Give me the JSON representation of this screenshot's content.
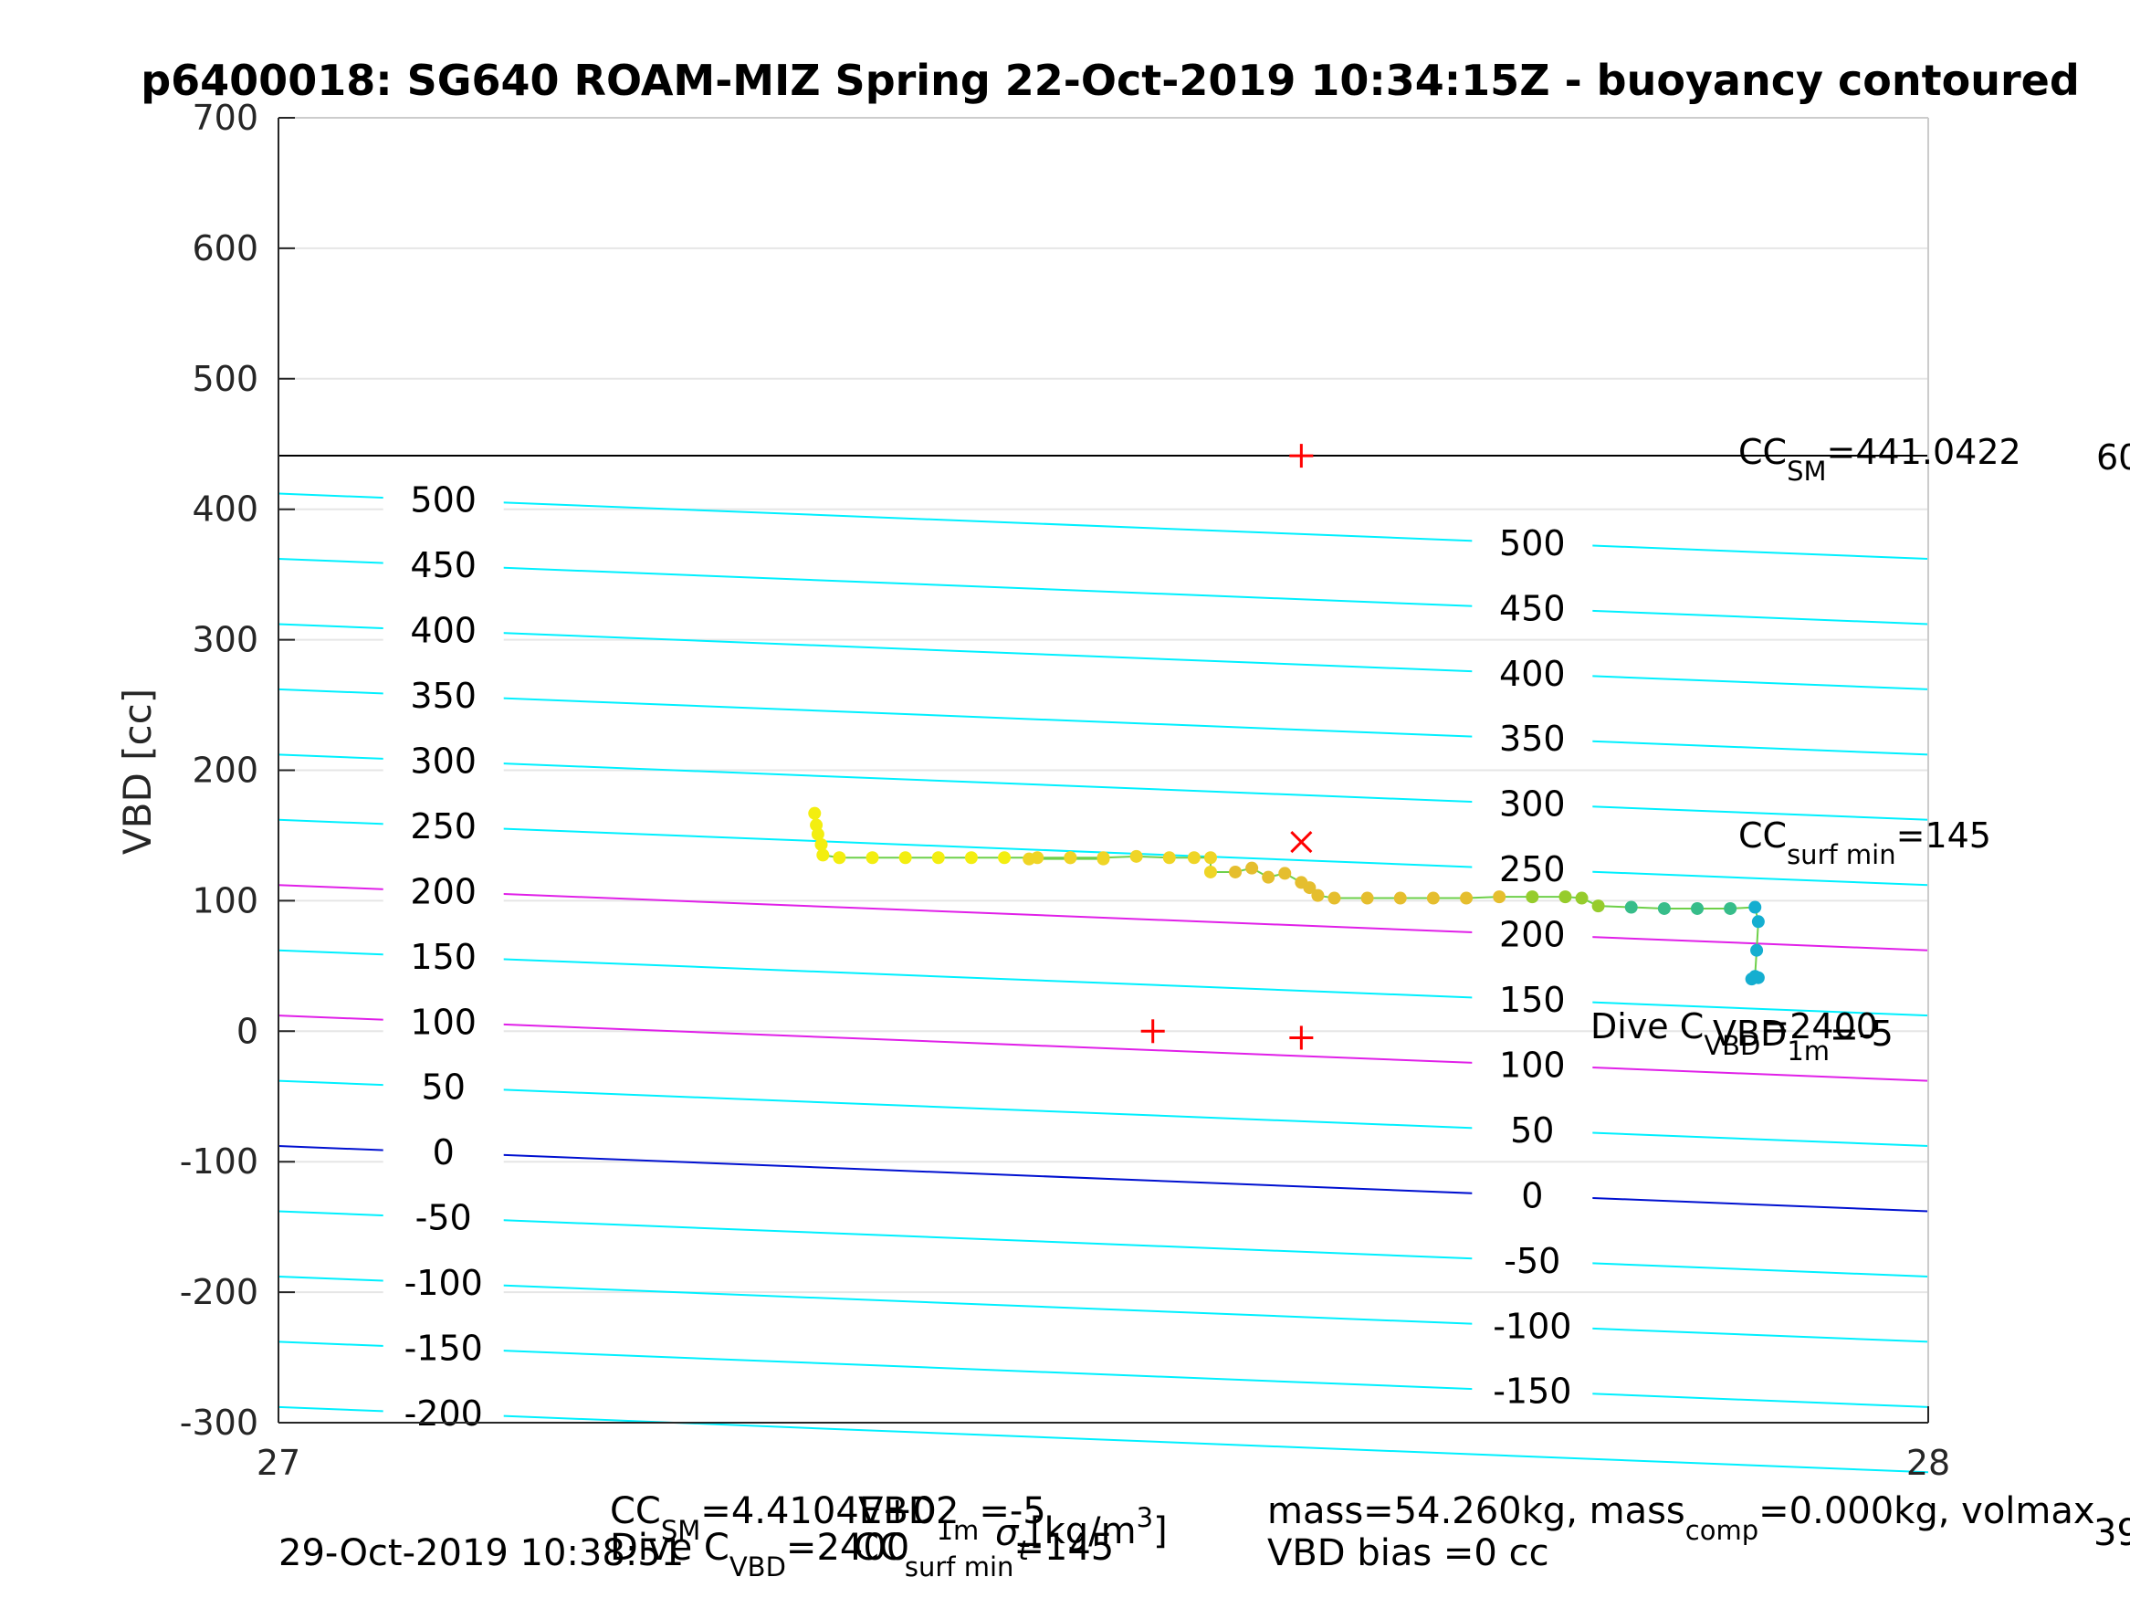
{
  "chart_data": {
    "type": "scatter",
    "title": "p6400018: SG640 ROAM-MIZ Spring 22-Oct-2019 10:34:15Z - buoyancy contoured",
    "xlabel": "",
    "ylabel": "VBD [cc]",
    "xlim": [
      27,
      28
    ],
    "ylim": [
      -300,
      700
    ],
    "x_ticks": [
      "27",
      "28"
    ],
    "y_ticks": [
      "700",
      "600",
      "500",
      "400",
      "300",
      "200",
      "100",
      "0",
      "-100",
      "-200",
      "-300"
    ],
    "grid": true,
    "reference_line": {
      "y": 441.0422,
      "label_main": "CC",
      "label_sub": "SM",
      "label_value": "=441.0422",
      "label_clipped": "60"
    },
    "contours": [
      {
        "value": 500,
        "y_left": 412,
        "y_right": 362,
        "color": "#00f0ff"
      },
      {
        "value": 450,
        "y_left": 362,
        "y_right": 312,
        "color": "#00f0ff"
      },
      {
        "value": 400,
        "y_left": 312,
        "y_right": 262,
        "color": "#00f0ff"
      },
      {
        "value": 350,
        "y_left": 262,
        "y_right": 212,
        "color": "#00f0ff"
      },
      {
        "value": 300,
        "y_left": 212,
        "y_right": 162,
        "color": "#00f0ff"
      },
      {
        "value": 250,
        "y_left": 162,
        "y_right": 112,
        "color": "#00f0ff"
      },
      {
        "value": 200,
        "y_left": 112,
        "y_right": 62,
        "color": "#e020e8"
      },
      {
        "value": 150,
        "y_left": 62,
        "y_right": 12,
        "color": "#00f0ff"
      },
      {
        "value": 100,
        "y_left": 12,
        "y_right": -38,
        "color": "#e020e8"
      },
      {
        "value": 50,
        "y_left": -38,
        "y_right": -88,
        "color": "#00f0ff"
      },
      {
        "value": 0,
        "y_left": -88,
        "y_right": -138,
        "color": "#0010d0"
      },
      {
        "value": -50,
        "y_left": -138,
        "y_right": -188,
        "color": "#00f0ff"
      },
      {
        "value": -100,
        "y_left": -188,
        "y_right": -238,
        "color": "#00f0ff"
      },
      {
        "value": -150,
        "y_left": -238,
        "y_right": -288,
        "color": "#00f0ff"
      },
      {
        "value": -200,
        "y_left": -288,
        "y_right": -338,
        "color": "#00f0ff"
      }
    ],
    "contour_labels_left": [
      "500",
      "450",
      "400",
      "350",
      "300",
      "250",
      "200",
      "150",
      "100",
      "50",
      "0",
      "-50",
      "-100",
      "-150",
      "-200"
    ],
    "contour_labels_right": [
      "500",
      "450",
      "400",
      "350",
      "300",
      "250",
      "200",
      "150",
      "100",
      "50",
      "0",
      "-50",
      "-100",
      "-150"
    ],
    "markers": [
      {
        "x": 27.62,
        "y": 441,
        "symbol": "+"
      },
      {
        "x": 27.62,
        "y": 145,
        "symbol": "x"
      },
      {
        "x": 27.53,
        "y": 0,
        "symbol": "+"
      },
      {
        "x": 27.62,
        "y": -5,
        "symbol": "+"
      }
    ],
    "annotations": {
      "cc_surf_main": "CC",
      "cc_surf_sub": "surf min",
      "cc_surf_value": "=145",
      "dive_main": "Dive C",
      "dive_sub": "VBD",
      "dive_value": "=2400",
      "vbd1m_main": "VBD",
      "vbd1m_sub": "1m",
      "vbd1m_value": "=-5"
    },
    "series": [
      {
        "colors": [
          "#f3ee10",
          "#efd526",
          "#e5be2e",
          "#96cc2c",
          "#37bd8a",
          "#14aed0"
        ],
        "points": [
          [
            27.325,
            167
          ],
          [
            27.326,
            158
          ],
          [
            27.327,
            151
          ],
          [
            27.329,
            143
          ],
          [
            27.33,
            135
          ],
          [
            27.34,
            133
          ],
          [
            27.36,
            133
          ],
          [
            27.38,
            133
          ],
          [
            27.4,
            133
          ],
          [
            27.42,
            133
          ],
          [
            27.44,
            133
          ],
          [
            27.46,
            133
          ],
          [
            27.48,
            133
          ],
          [
            27.5,
            132
          ],
          [
            27.455,
            132
          ],
          [
            27.48,
            133
          ],
          [
            27.5,
            133
          ],
          [
            27.52,
            134
          ],
          [
            27.54,
            133
          ],
          [
            27.555,
            133
          ],
          [
            27.565,
            133
          ],
          [
            27.565,
            122
          ],
          [
            27.58,
            122
          ],
          [
            27.59,
            125
          ],
          [
            27.6,
            118
          ],
          [
            27.61,
            121
          ],
          [
            27.62,
            114
          ],
          [
            27.625,
            110
          ],
          [
            27.63,
            104
          ],
          [
            27.64,
            102
          ],
          [
            27.66,
            102
          ],
          [
            27.68,
            102
          ],
          [
            27.7,
            102
          ],
          [
            27.72,
            102
          ],
          [
            27.74,
            103
          ],
          [
            27.76,
            103
          ],
          [
            27.78,
            103
          ],
          [
            27.79,
            102
          ],
          [
            27.8,
            96
          ],
          [
            27.82,
            95
          ],
          [
            27.84,
            94
          ],
          [
            27.86,
            94
          ],
          [
            27.88,
            94
          ],
          [
            27.895,
            95
          ],
          [
            27.897,
            84
          ],
          [
            27.896,
            62
          ],
          [
            27.895,
            42
          ],
          [
            27.893,
            40
          ],
          [
            27.897,
            41
          ]
        ],
        "color_index": [
          0,
          0,
          0,
          0,
          0,
          0,
          0,
          0,
          0,
          0,
          0,
          1,
          1,
          1,
          1,
          1,
          1,
          1,
          1,
          1,
          1,
          1,
          2,
          2,
          2,
          2,
          2,
          2,
          2,
          2,
          2,
          2,
          2,
          2,
          2,
          3,
          3,
          3,
          3,
          4,
          4,
          4,
          4,
          5,
          5,
          5,
          5,
          5,
          5
        ]
      }
    ]
  },
  "footer": {
    "timestamp": "29-Oct-2019 10:38:51",
    "overlap_line1_a": "CC",
    "overlap_line1_sm": "SM",
    "overlap_line1_b": "=4.4104E+02",
    "overlap_vbd": "VBD",
    "overlap_1m": "1m",
    "overlap_line1_c": "=-5",
    "overlap_density": "[kg/m",
    "overlap_density_sup": "3",
    "overlap_density_end": "]",
    "overlap_line2_a": "Dive C",
    "overlap_line2_vbd": "VBD",
    "overlap_line2_b": "=2400",
    "overlap_sigma": "σ",
    "overlap_sigma_sub": "t",
    "overlap_cc": "CC",
    "overlap_cc_sub": "surf min",
    "overlap_cc_val": "=145",
    "mass_text": "mass=54.260kg, mass",
    "mass_sub": "comp",
    "mass_rest": "=0.000kg, volmax",
    "vbd_bias": "VBD bias =0 cc",
    "clipped_right": "39"
  }
}
